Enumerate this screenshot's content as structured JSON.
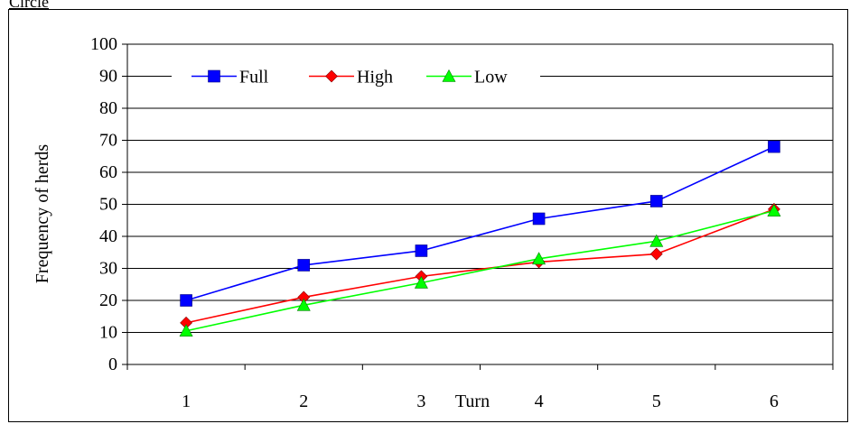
{
  "page": {
    "header_label": "Circle"
  },
  "chart_data": {
    "type": "line",
    "title": "",
    "xlabel": "Turn",
    "ylabel": "Frequency of herds",
    "x": [
      1,
      2,
      3,
      4,
      5,
      6
    ],
    "categories": [
      "1",
      "2",
      "3",
      "4",
      "5",
      "6"
    ],
    "ylim": [
      0,
      100
    ],
    "yticks": [
      0,
      10,
      20,
      30,
      40,
      50,
      60,
      70,
      80,
      90,
      100
    ],
    "grid": true,
    "legend": "top",
    "series": [
      {
        "name": "Full",
        "color": "#0000ff",
        "marker": "square",
        "values": [
          20,
          31,
          35.5,
          45.5,
          51,
          68
        ]
      },
      {
        "name": "High",
        "color": "#ff0000",
        "marker": "diamond",
        "values": [
          13,
          21,
          27.5,
          32,
          34.5,
          48.5
        ]
      },
      {
        "name": "Low",
        "color": "#00ff00",
        "marker": "triangle",
        "values": [
          10.5,
          18.5,
          25.5,
          33,
          38.5,
          48
        ]
      }
    ]
  }
}
